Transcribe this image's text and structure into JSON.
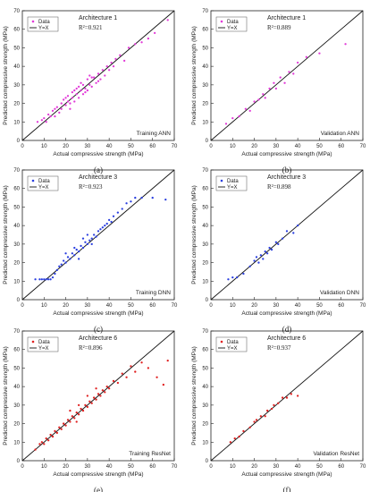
{
  "chart_data": [
    {
      "type": "scatter",
      "panel": "(a)",
      "architecture": "Architecture 1",
      "r2": "R²=0.921",
      "corner": "Training ANN",
      "xlabel": "Actual compressive strength (MPa)",
      "ylabel": "Predicted compressive strength (MPa)",
      "xlim": [
        0,
        70
      ],
      "ylim": [
        0,
        70
      ],
      "xticks": [
        "0",
        "10",
        "20",
        "30",
        "40",
        "50",
        "60",
        "70"
      ],
      "yticks": [
        "0",
        "10",
        "20",
        "30",
        "40",
        "50",
        "60",
        "70"
      ],
      "legend": [
        "Data",
        "Y=X"
      ],
      "color": "#e23ad8",
      "series": [
        {
          "name": "Data",
          "points": [
            [
              7,
              10
            ],
            [
              9,
              11
            ],
            [
              10,
              12
            ],
            [
              11,
              10
            ],
            [
              12,
              14
            ],
            [
              13,
              13
            ],
            [
              14,
              16
            ],
            [
              15,
              13
            ],
            [
              16,
              18
            ],
            [
              17,
              15
            ],
            [
              18,
              20
            ],
            [
              18,
              17
            ],
            [
              19,
              22
            ],
            [
              20,
              19
            ],
            [
              21,
              21
            ],
            [
              21,
              24
            ],
            [
              22,
              20
            ],
            [
              23,
              23
            ],
            [
              23,
              26
            ],
            [
              24,
              21
            ],
            [
              25,
              25
            ],
            [
              25,
              28
            ],
            [
              26,
              23
            ],
            [
              27,
              27
            ],
            [
              28,
              30
            ],
            [
              28,
              25
            ],
            [
              29,
              28
            ],
            [
              30,
              33
            ],
            [
              30,
              27
            ],
            [
              31,
              30
            ],
            [
              32,
              29
            ],
            [
              33,
              34
            ],
            [
              34,
              31
            ],
            [
              35,
              36
            ],
            [
              36,
              33
            ],
            [
              37,
              38
            ],
            [
              38,
              35
            ],
            [
              39,
              40
            ],
            [
              40,
              38
            ],
            [
              41,
              42
            ],
            [
              42,
              40
            ],
            [
              43,
              44
            ],
            [
              45,
              46
            ],
            [
              47,
              43
            ],
            [
              49,
              50
            ],
            [
              52,
              52
            ],
            [
              55,
              53
            ],
            [
              58,
              55
            ],
            [
              61,
              58
            ],
            [
              67,
              65
            ],
            [
              20,
              23
            ],
            [
              24,
              27
            ],
            [
              27,
              31
            ],
            [
              29,
              26
            ],
            [
              32,
              34
            ],
            [
              35,
              32
            ],
            [
              22,
              17
            ],
            [
              26,
              29
            ],
            [
              31,
              35
            ],
            [
              15,
              17
            ]
          ]
        }
      ],
      "reference_line": "Y=X"
    },
    {
      "type": "scatter",
      "panel": "(b)",
      "architecture": "Architecture 1",
      "r2": "R²=0.889",
      "corner": "Validation ANN",
      "xlabel": "Actual compressive strength (MPa)",
      "ylabel": "Predicted compressive strength (MPa)",
      "xlim": [
        0,
        70
      ],
      "ylim": [
        0,
        70
      ],
      "xticks": [
        "0",
        "10",
        "20",
        "30",
        "40",
        "50",
        "60",
        "70"
      ],
      "yticks": [
        "0",
        "10",
        "20",
        "30",
        "40",
        "50",
        "60",
        "70"
      ],
      "legend": [
        "Data",
        "Y=X"
      ],
      "color": "#e23ad8",
      "series": [
        {
          "name": "Data",
          "points": [
            [
              7,
              9
            ],
            [
              10,
              12
            ],
            [
              13,
              13
            ],
            [
              16,
              17
            ],
            [
              18,
              16
            ],
            [
              20,
              21
            ],
            [
              22,
              22
            ],
            [
              24,
              25
            ],
            [
              25,
              23
            ],
            [
              27,
              28
            ],
            [
              29,
              31
            ],
            [
              30,
              28
            ],
            [
              32,
              34
            ],
            [
              34,
              31
            ],
            [
              36,
              37
            ],
            [
              38,
              36
            ],
            [
              40,
              42
            ],
            [
              44,
              45
            ],
            [
              50,
              47
            ],
            [
              62,
              52
            ]
          ]
        }
      ],
      "reference_line": "Y=X"
    },
    {
      "type": "scatter",
      "panel": "(c)",
      "architecture": "Architecture 3",
      "r2": "R²=0.923",
      "corner": "Training DNN",
      "xlabel": "Actual compressive strength (MPa)",
      "ylabel": "Predicted compressive strength (MPa)",
      "xlim": [
        0,
        70
      ],
      "ylim": [
        0,
        70
      ],
      "xticks": [
        "0",
        "10",
        "20",
        "30",
        "40",
        "50",
        "60",
        "70"
      ],
      "yticks": [
        "0",
        "10",
        "20",
        "30",
        "40",
        "50",
        "60",
        "70"
      ],
      "legend": [
        "Data",
        "Y=X"
      ],
      "color": "#2a3fe0",
      "series": [
        {
          "name": "Data",
          "points": [
            [
              6,
              11
            ],
            [
              8,
              11
            ],
            [
              9,
              11
            ],
            [
              10,
              11
            ],
            [
              11,
              11
            ],
            [
              12,
              11
            ],
            [
              13,
              11
            ],
            [
              14,
              12
            ],
            [
              15,
              14
            ],
            [
              16,
              16
            ],
            [
              17,
              18
            ],
            [
              18,
              19
            ],
            [
              19,
              21
            ],
            [
              20,
              20
            ],
            [
              21,
              23
            ],
            [
              22,
              22
            ],
            [
              23,
              25
            ],
            [
              24,
              24
            ],
            [
              25,
              27
            ],
            [
              26,
              26
            ],
            [
              27,
              29
            ],
            [
              28,
              28
            ],
            [
              29,
              31
            ],
            [
              30,
              30
            ],
            [
              31,
              32
            ],
            [
              32,
              33
            ],
            [
              33,
              35
            ],
            [
              34,
              34
            ],
            [
              35,
              37
            ],
            [
              36,
              38
            ],
            [
              37,
              39
            ],
            [
              38,
              40
            ],
            [
              39,
              41
            ],
            [
              40,
              43
            ],
            [
              41,
              42
            ],
            [
              42,
              45
            ],
            [
              44,
              47
            ],
            [
              46,
              49
            ],
            [
              48,
              52
            ],
            [
              50,
              53
            ],
            [
              52,
              55
            ],
            [
              55,
              55
            ],
            [
              60,
              55
            ],
            [
              66,
              54
            ],
            [
              20,
              25
            ],
            [
              24,
              28
            ],
            [
              28,
              33
            ],
            [
              32,
              30
            ],
            [
              26,
              22
            ],
            [
              30,
              35
            ]
          ]
        }
      ],
      "reference_line": "Y=X"
    },
    {
      "type": "scatter",
      "panel": "(d)",
      "architecture": "Architecture 3",
      "r2": "R²=0.898",
      "corner": "Validation DNN",
      "xlabel": "Actual compressive strength (MPa)",
      "ylabel": "Predicted compressive strength (MPa)",
      "xlim": [
        0,
        70
      ],
      "ylim": [
        0,
        70
      ],
      "xticks": [
        "0",
        "10",
        "20",
        "30",
        "40",
        "50",
        "60",
        "70"
      ],
      "yticks": [
        "0",
        "10",
        "20",
        "30",
        "40",
        "50",
        "60",
        "70"
      ],
      "legend": [
        "Data",
        "Y=X"
      ],
      "color": "#2a3fe0",
      "series": [
        {
          "name": "Data",
          "points": [
            [
              8,
              11
            ],
            [
              10,
              12
            ],
            [
              12,
              12
            ],
            [
              15,
              14
            ],
            [
              18,
              18
            ],
            [
              20,
              21
            ],
            [
              21,
              23
            ],
            [
              22,
              20
            ],
            [
              23,
              24
            ],
            [
              24,
              22
            ],
            [
              25,
              26
            ],
            [
              26,
              25
            ],
            [
              27,
              28
            ],
            [
              28,
              27
            ],
            [
              30,
              31
            ],
            [
              31,
              30
            ],
            [
              33,
              33
            ],
            [
              35,
              37
            ],
            [
              38,
              36
            ],
            [
              40,
              40
            ]
          ]
        }
      ],
      "reference_line": "Y=X"
    },
    {
      "type": "scatter",
      "panel": "(e)",
      "architecture": "Architecture 6",
      "r2": "R²=0.896",
      "corner": "Training ResNet",
      "xlabel": "Actual compressive strength (MPa)",
      "ylabel": "Predicted compressive strength (MPa)",
      "xlim": [
        0,
        70
      ],
      "ylim": [
        0,
        70
      ],
      "xticks": [
        "0",
        "10",
        "20",
        "30",
        "40",
        "50",
        "60",
        "70"
      ],
      "yticks": [
        "0",
        "10",
        "20",
        "30",
        "40",
        "50",
        "60",
        "70"
      ],
      "legend": [
        "Data",
        "Y=X"
      ],
      "color": "#e02020",
      "series": [
        {
          "name": "Data",
          "points": [
            [
              6,
              6
            ],
            [
              8,
              9
            ],
            [
              9,
              10
            ],
            [
              10,
              9
            ],
            [
              11,
              12
            ],
            [
              12,
              11
            ],
            [
              13,
              14
            ],
            [
              14,
              13
            ],
            [
              15,
              16
            ],
            [
              16,
              15
            ],
            [
              17,
              18
            ],
            [
              18,
              17
            ],
            [
              19,
              20
            ],
            [
              20,
              19
            ],
            [
              21,
              22
            ],
            [
              22,
              21
            ],
            [
              23,
              24
            ],
            [
              24,
              23
            ],
            [
              25,
              26
            ],
            [
              26,
              25
            ],
            [
              27,
              28
            ],
            [
              28,
              27
            ],
            [
              29,
              30
            ],
            [
              30,
              29
            ],
            [
              31,
              32
            ],
            [
              32,
              31
            ],
            [
              33,
              34
            ],
            [
              34,
              33
            ],
            [
              35,
              36
            ],
            [
              36,
              35
            ],
            [
              37,
              38
            ],
            [
              38,
              37
            ],
            [
              39,
              40
            ],
            [
              40,
              39
            ],
            [
              42,
              43
            ],
            [
              44,
              42
            ],
            [
              46,
              47
            ],
            [
              48,
              45
            ],
            [
              50,
              51
            ],
            [
              52,
              48
            ],
            [
              55,
              53
            ],
            [
              58,
              50
            ],
            [
              62,
              45
            ],
            [
              65,
              41
            ],
            [
              67,
              54
            ],
            [
              22,
              27
            ],
            [
              26,
              30
            ],
            [
              30,
              35
            ],
            [
              34,
              39
            ],
            [
              25,
              21
            ]
          ]
        }
      ],
      "reference_line": "Y=X"
    },
    {
      "type": "scatter",
      "panel": "(f)",
      "architecture": "Architecture 6",
      "r2": "R²=0.937",
      "corner": "Validation ResNet",
      "xlabel": "Actual compressive strength (MPa)",
      "ylabel": "Predicted compressive strength (MPa)",
      "xlim": [
        0,
        70
      ],
      "ylim": [
        0,
        70
      ],
      "xticks": [
        "0",
        "10",
        "20",
        "30",
        "40",
        "50",
        "60",
        "70"
      ],
      "yticks": [
        "0",
        "10",
        "20",
        "30",
        "40",
        "50",
        "60",
        "70"
      ],
      "legend": [
        "Data",
        "Y=X"
      ],
      "color": "#e02020",
      "series": [
        {
          "name": "Data",
          "points": [
            [
              9,
              10
            ],
            [
              11,
              12
            ],
            [
              13,
              13
            ],
            [
              15,
              16
            ],
            [
              18,
              18
            ],
            [
              20,
              21
            ],
            [
              21,
              22
            ],
            [
              23,
              24
            ],
            [
              25,
              24
            ],
            [
              26,
              27
            ],
            [
              28,
              28
            ],
            [
              29,
              30
            ],
            [
              31,
              31
            ],
            [
              33,
              34
            ],
            [
              35,
              34
            ],
            [
              37,
              36
            ],
            [
              40,
              35
            ]
          ]
        }
      ],
      "reference_line": "Y=X"
    }
  ]
}
